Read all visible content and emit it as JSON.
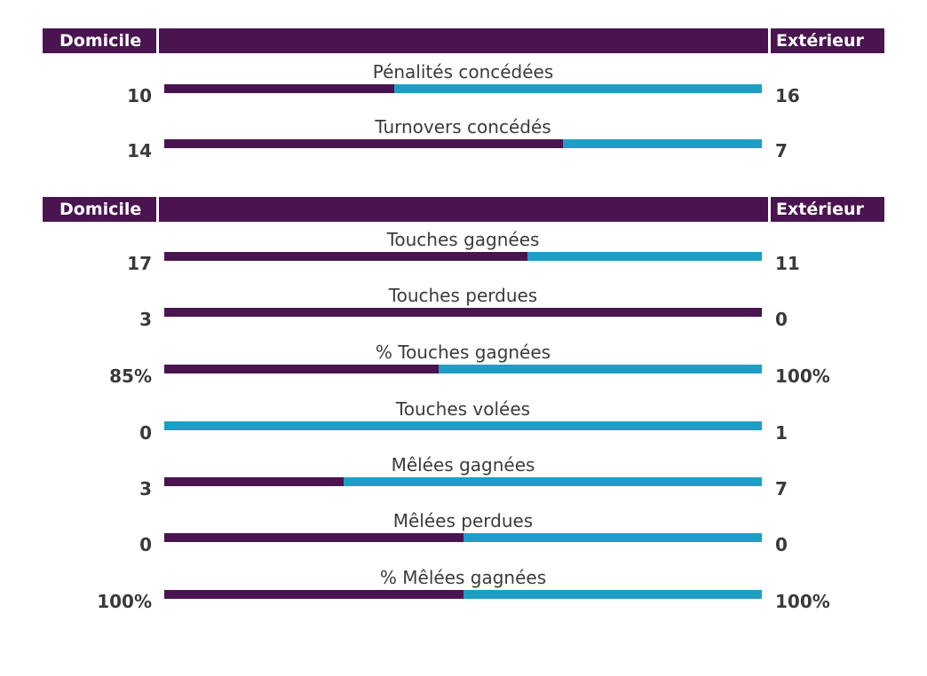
{
  "chart_data": [
    {
      "type": "bar",
      "layout": "diverging-proportion",
      "header": {
        "home": "Domicile",
        "away": "Extérieur"
      },
      "stats": [
        {
          "label": "Pénalités concédées",
          "home": "10",
          "away": "16",
          "home_share": 0.385
        },
        {
          "label": "Turnovers concédés",
          "home": "14",
          "away": "7",
          "home_share": 0.667
        }
      ]
    },
    {
      "type": "bar",
      "layout": "diverging-proportion",
      "header": {
        "home": "Domicile",
        "away": "Extérieur"
      },
      "stats": [
        {
          "label": "Touches gagnées",
          "home": "17",
          "away": "11",
          "home_share": 0.607
        },
        {
          "label": "Touches perdues",
          "home": "3",
          "away": "0",
          "home_share": 1.0
        },
        {
          "label": "% Touches gagnées",
          "home": "85%",
          "away": "100%",
          "home_share": 0.459
        },
        {
          "label": "Touches volées",
          "home": "0",
          "away": "1",
          "home_share": 0.0
        },
        {
          "label": "Mêlées gagnées",
          "home": "3",
          "away": "7",
          "home_share": 0.3
        },
        {
          "label": "Mêlées perdues",
          "home": "0",
          "away": "0",
          "home_share": 0.5
        },
        {
          "label": "% Mêlées gagnées",
          "home": "100%",
          "away": "100%",
          "home_share": 0.5
        }
      ]
    }
  ],
  "colors": {
    "home": "#4a1450",
    "away": "#1e9ec4",
    "header": "#4a1450"
  }
}
